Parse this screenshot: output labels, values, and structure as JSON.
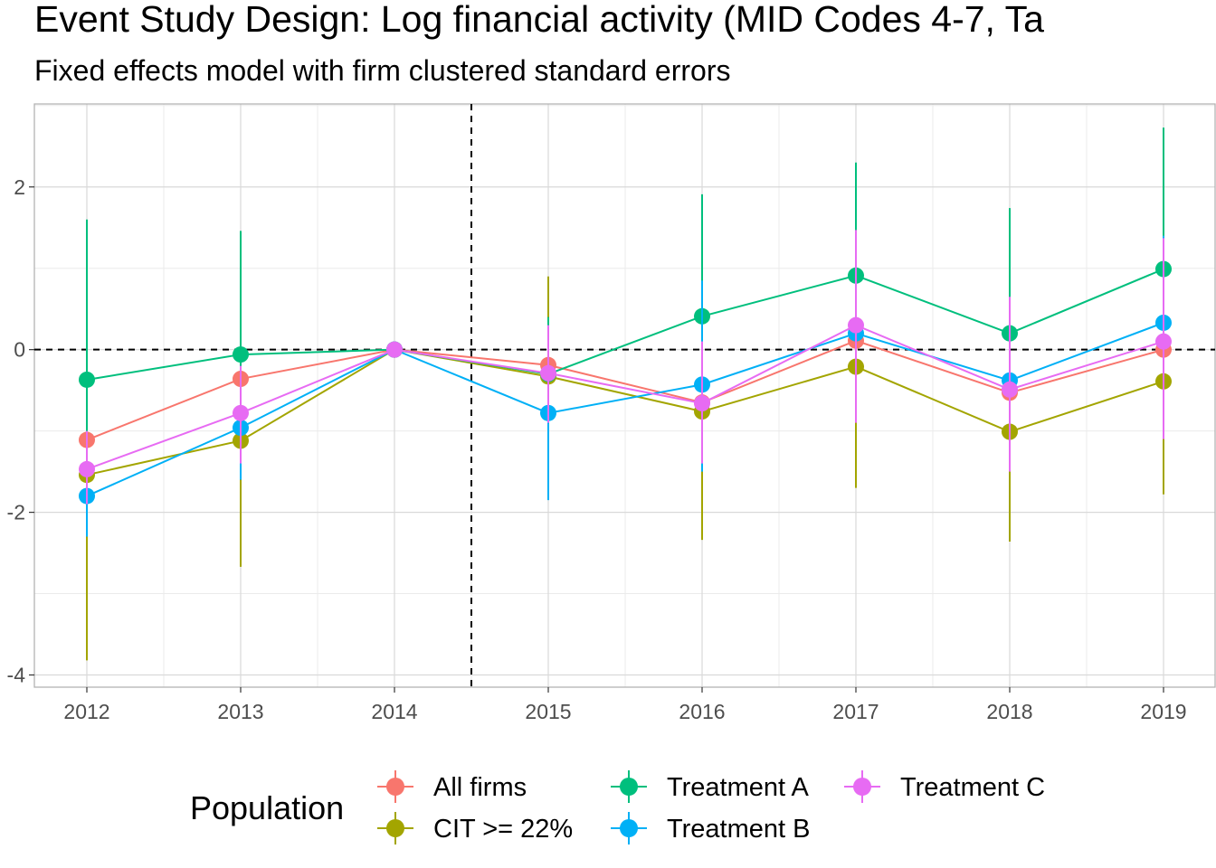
{
  "chart_data": {
    "type": "line",
    "title": "Event Study Design: Log financial activity (MID Codes 4-7, Ta",
    "subtitle": "Fixed effects model with firm clustered standard errors",
    "xlabel": "",
    "ylabel": "",
    "categories": [
      "2012",
      "2013",
      "2014",
      "2015",
      "2016",
      "2017",
      "2018",
      "2019"
    ],
    "y_ticks": [
      "-4",
      "-2",
      "0",
      "2"
    ],
    "ylim": [
      -4.15,
      3.02
    ],
    "grid": true,
    "reference_lines": {
      "h": 0,
      "v": 2014.5
    },
    "legend": {
      "title": "Population",
      "position": "bottom"
    },
    "series": [
      {
        "name": "All firms",
        "color": "#F8766D",
        "values": [
          -1.11,
          -0.36,
          0.0,
          -0.19,
          -0.65,
          0.11,
          -0.53,
          0.0
        ],
        "lower": [
          -1.5,
          -0.9,
          0.0,
          -0.5,
          -1.1,
          -0.3,
          -0.9,
          -0.4
        ],
        "upper": [
          -0.7,
          0.2,
          0.0,
          0.1,
          -0.2,
          0.5,
          -0.15,
          0.4
        ]
      },
      {
        "name": "CIT >= 22%",
        "color": "#A3A500",
        "values": [
          -1.54,
          -1.12,
          0.0,
          -0.33,
          -0.76,
          -0.21,
          -1.01,
          -0.39
        ],
        "lower": [
          -3.82,
          -2.67,
          0.0,
          -1.56,
          -2.34,
          -1.7,
          -2.36,
          -1.78
        ],
        "upper": [
          0.78,
          0.43,
          0.0,
          0.9,
          0.82,
          1.3,
          0.34,
          1.0
        ]
      },
      {
        "name": "Treatment A",
        "color": "#00BF7D",
        "values": [
          -0.37,
          -0.06,
          0.0,
          -0.3,
          0.41,
          0.91,
          0.2,
          0.99
        ],
        "lower": [
          -1.6,
          -1.5,
          0.0,
          -1.0,
          -1.1,
          -0.5,
          -1.3,
          -0.7
        ],
        "upper": [
          1.6,
          1.46,
          0.0,
          0.4,
          1.91,
          2.3,
          1.74,
          2.73
        ]
      },
      {
        "name": "Treatment B",
        "color": "#00B0F6",
        "values": [
          -1.8,
          -0.96,
          0.0,
          -0.78,
          -0.43,
          0.2,
          -0.38,
          0.33
        ],
        "lower": [
          -2.3,
          -1.6,
          0.0,
          -1.85,
          -1.5,
          -0.6,
          -1.3,
          -0.7
        ],
        "upper": [
          -1.3,
          -0.3,
          0.0,
          0.3,
          0.85,
          1.0,
          0.6,
          1.4
        ]
      },
      {
        "name": "Treatment C",
        "color": "#E76BF3",
        "values": [
          -1.47,
          -0.78,
          0.0,
          -0.29,
          -0.66,
          0.3,
          -0.49,
          0.1
        ],
        "lower": [
          -1.9,
          -1.4,
          0.0,
          -0.9,
          -1.4,
          -0.9,
          -1.5,
          -1.1
        ],
        "upper": [
          -1.0,
          -0.2,
          0.0,
          0.3,
          0.1,
          1.47,
          0.65,
          1.37
        ]
      }
    ]
  }
}
